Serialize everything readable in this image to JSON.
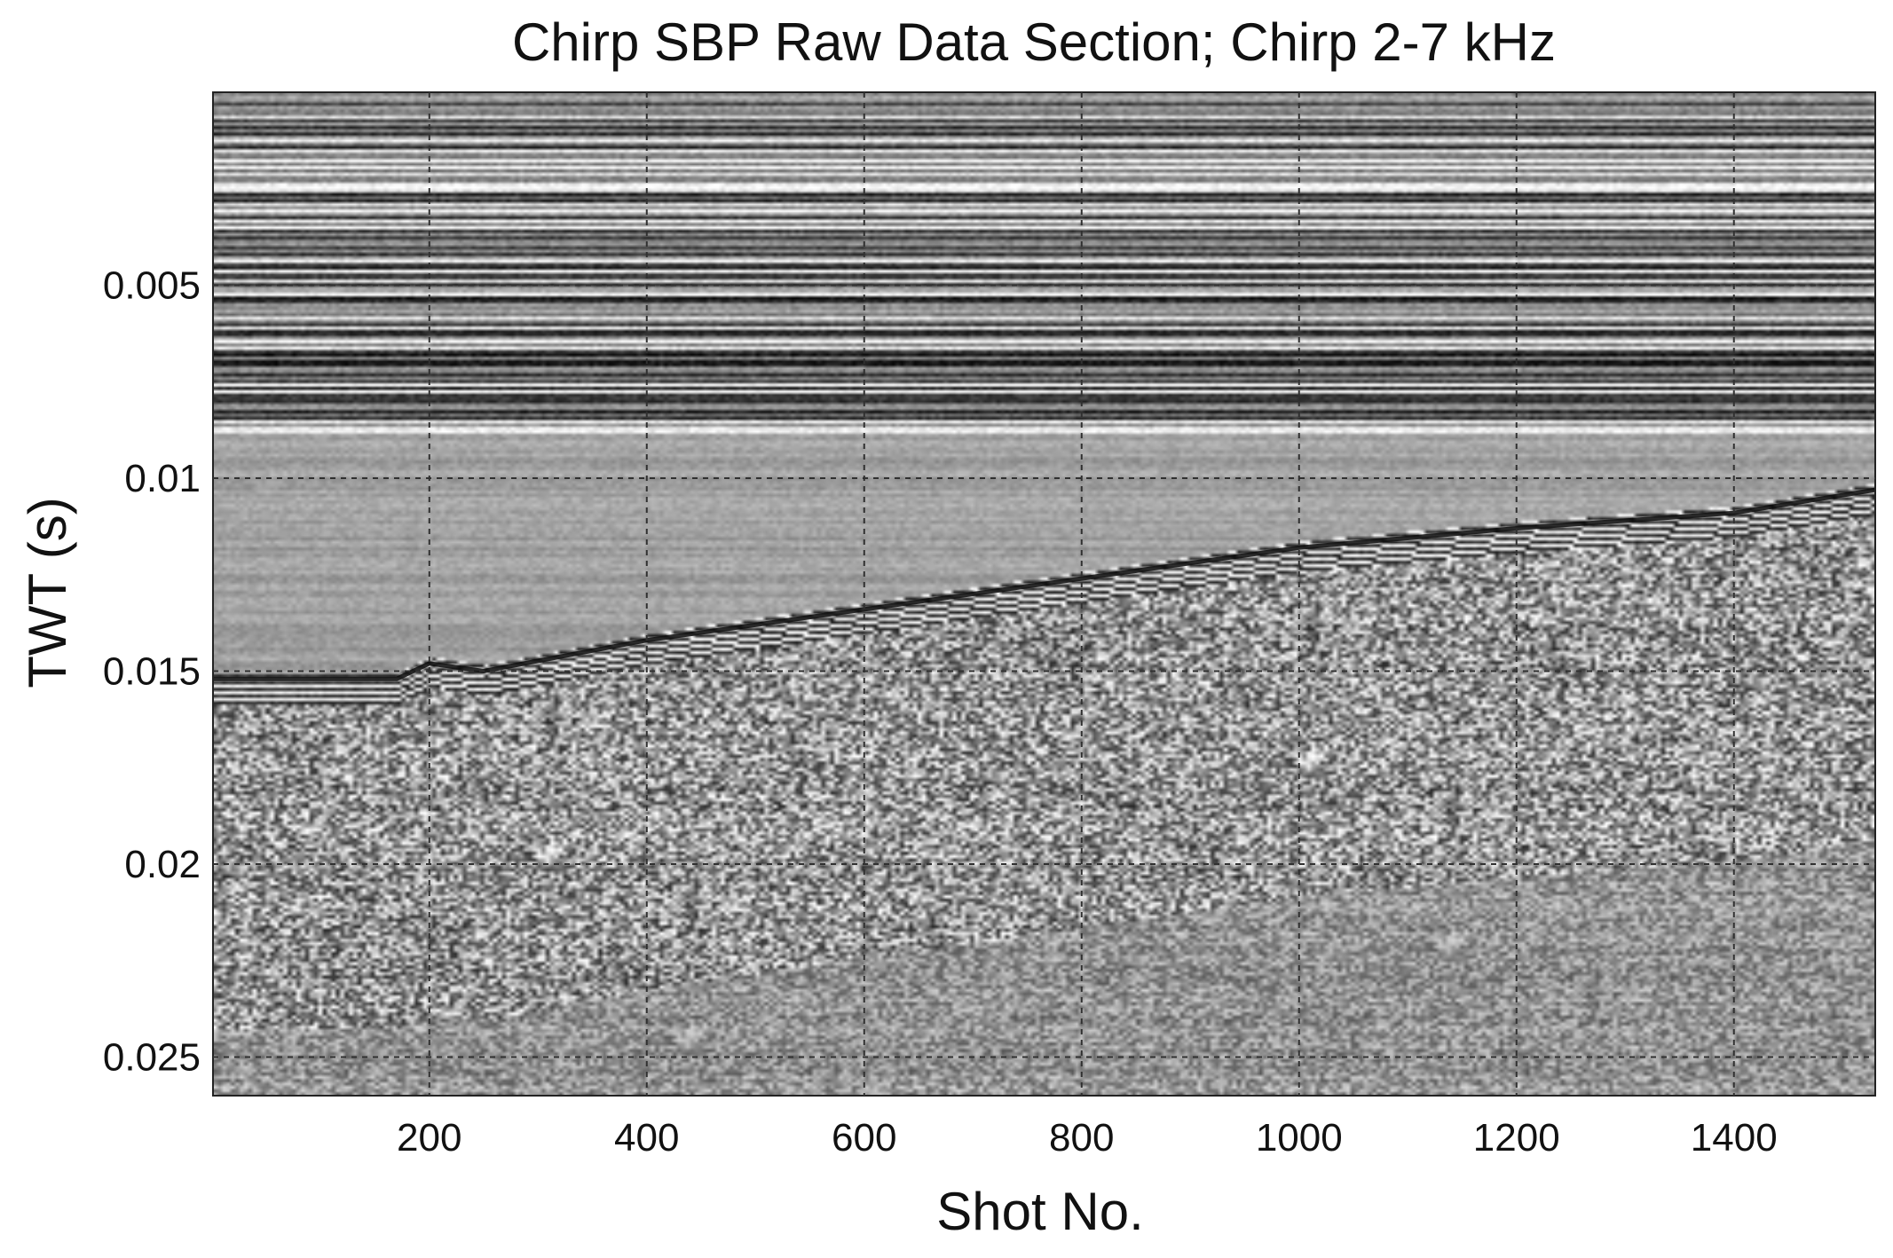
{
  "chart_data": {
    "type": "heatmap",
    "title": "Chirp SBP Raw Data Section; Chirp 2-7 kHz",
    "xlabel": "Shot No.",
    "ylabel": "TWT (s)",
    "xlim": [
      1,
      1530
    ],
    "ylim": [
      0.026,
      0.0
    ],
    "y_reversed": true,
    "xticks": [
      200,
      400,
      600,
      800,
      1000,
      1200,
      1400
    ],
    "xtick_labels": [
      "200",
      "400",
      "600",
      "800",
      "1000",
      "1200",
      "1400"
    ],
    "yticks": [
      0.005,
      0.01,
      0.015,
      0.02,
      0.025
    ],
    "ytick_labels": [
      "0.005",
      "0.01",
      "0.015",
      "0.02",
      "0.025"
    ],
    "grid": true,
    "colormap": "grayscale",
    "seabed_reflector": {
      "shot": [
        1,
        100,
        170,
        200,
        250,
        400,
        600,
        800,
        1000,
        1200,
        1400,
        1530
      ],
      "twt": [
        0.0152,
        0.0152,
        0.0152,
        0.0148,
        0.015,
        0.0142,
        0.0134,
        0.0126,
        0.0118,
        0.0113,
        0.0109,
        0.0103
      ]
    }
  },
  "colors": {
    "background": "#ffffff",
    "plot_base": "#a8a8a8",
    "grid": "#303030",
    "text": "#111111"
  }
}
